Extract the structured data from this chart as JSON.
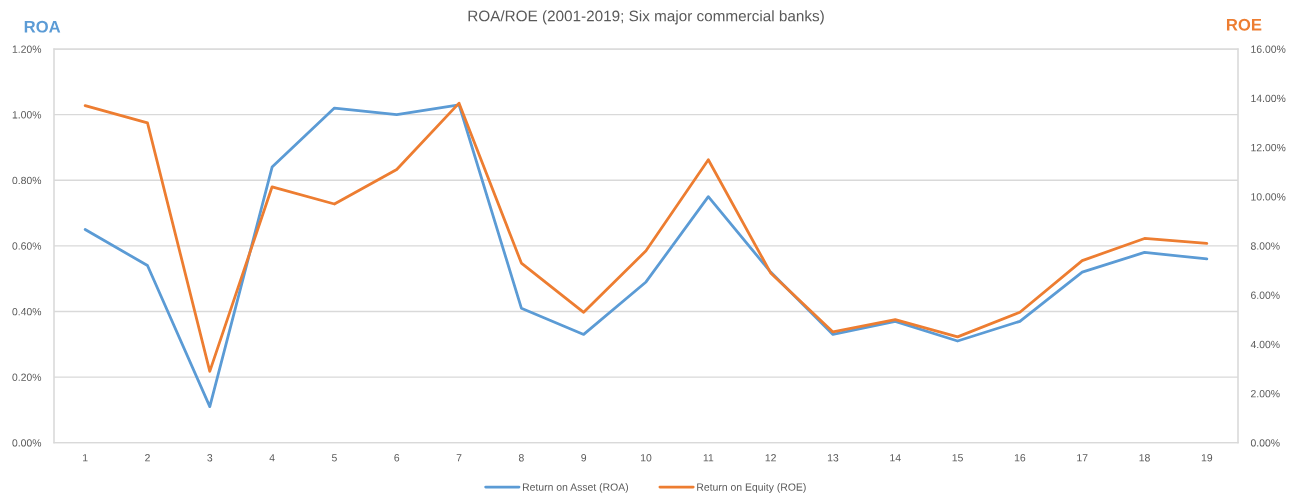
{
  "chart_data": {
    "type": "line",
    "title": "ROA/ROE (2001-2019; Six major commercial banks)",
    "ylabel": "ROA",
    "y2label": "ROE",
    "categories": [
      "1",
      "2",
      "3",
      "4",
      "5",
      "6",
      "7",
      "8",
      "9",
      "10",
      "11",
      "12",
      "13",
      "14",
      "15",
      "16",
      "17",
      "18",
      "19"
    ],
    "series": [
      {
        "name": "Return on Asset (ROA)",
        "color": "#5b9bd5",
        "values": [
          0.65,
          0.54,
          0.11,
          0.84,
          1.02,
          1.0,
          1.03,
          0.41,
          0.33,
          0.49,
          0.75,
          0.52,
          0.33,
          0.37,
          0.31,
          0.37,
          0.52,
          0.58,
          0.56
        ]
      },
      {
        "name": "Return on Equity (ROE)",
        "color": "#ed7d31",
        "axis": "y2",
        "values": [
          13.7,
          13.0,
          2.9,
          10.4,
          9.7,
          11.1,
          13.8,
          7.3,
          5.3,
          7.8,
          11.5,
          6.9,
          4.5,
          5.0,
          4.3,
          5.3,
          7.4,
          8.3,
          8.1
        ]
      }
    ],
    "ylim": [
      0,
      1.2
    ],
    "yticks": [
      {
        "value": 0,
        "label": "0.00%"
      },
      {
        "value": 0.2,
        "label": "0.20%"
      },
      {
        "value": 0.4,
        "label": "0.40%"
      },
      {
        "value": 0.6,
        "label": "0.60%"
      },
      {
        "value": 0.8,
        "label": "0.80%"
      },
      {
        "value": 1.0,
        "label": "1.00%"
      },
      {
        "value": 1.2,
        "label": "1.20%"
      }
    ],
    "y2lim": [
      0,
      16
    ],
    "y2ticks": [
      {
        "value": 0,
        "label": "0.00%"
      },
      {
        "value": 2,
        "label": "2.00%"
      },
      {
        "value": 4,
        "label": "4.00%"
      },
      {
        "value": 6,
        "label": "6.00%"
      },
      {
        "value": 8,
        "label": "8.00%"
      },
      {
        "value": 10,
        "label": "10.00%"
      },
      {
        "value": 12,
        "label": "12.00%"
      },
      {
        "value": 14,
        "label": "14.00%"
      },
      {
        "value": 16,
        "label": "16.00%"
      }
    ],
    "grid": "y",
    "legend": "bottom",
    "line_style": "solid"
  }
}
